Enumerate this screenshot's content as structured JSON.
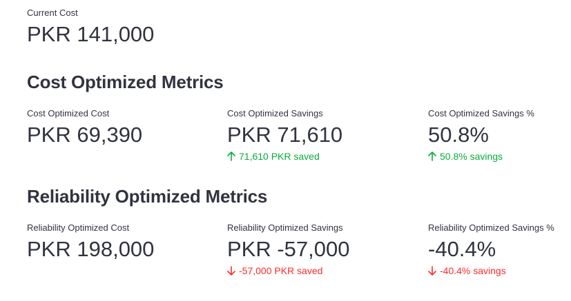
{
  "current": {
    "label": "Current Cost",
    "value": "PKR 141,000"
  },
  "cost_section": {
    "title": "Cost Optimized Metrics",
    "metrics": [
      {
        "label": "Cost Optimized Cost",
        "value": "PKR 69,390",
        "delta": ""
      },
      {
        "label": "Cost Optimized Savings",
        "value": "PKR 71,610",
        "delta": "71,610 PKR saved",
        "delta_direction": "up",
        "delta_icon": "arrow-up-icon"
      },
      {
        "label": "Cost Optimized Savings %",
        "value": "50.8%",
        "delta": "50.8% savings",
        "delta_direction": "up",
        "delta_icon": "arrow-up-icon"
      }
    ]
  },
  "reliability_section": {
    "title": "Reliability Optimized Metrics",
    "metrics": [
      {
        "label": "Reliability Optimized Cost",
        "value": "PKR 198,000",
        "delta": ""
      },
      {
        "label": "Reliability Optimized Savings",
        "value": "PKR -57,000",
        "delta": "-57,000 PKR saved",
        "delta_direction": "down",
        "delta_icon": "arrow-down-icon"
      },
      {
        "label": "Reliability Optimized Savings %",
        "value": "-40.4%",
        "delta": "-40.4% savings",
        "delta_direction": "down",
        "delta_icon": "arrow-down-icon"
      }
    ]
  },
  "colors": {
    "text": "#31333f",
    "positive": "#09ab3b",
    "negative": "#ff2b2b",
    "background": "#ffffff"
  }
}
